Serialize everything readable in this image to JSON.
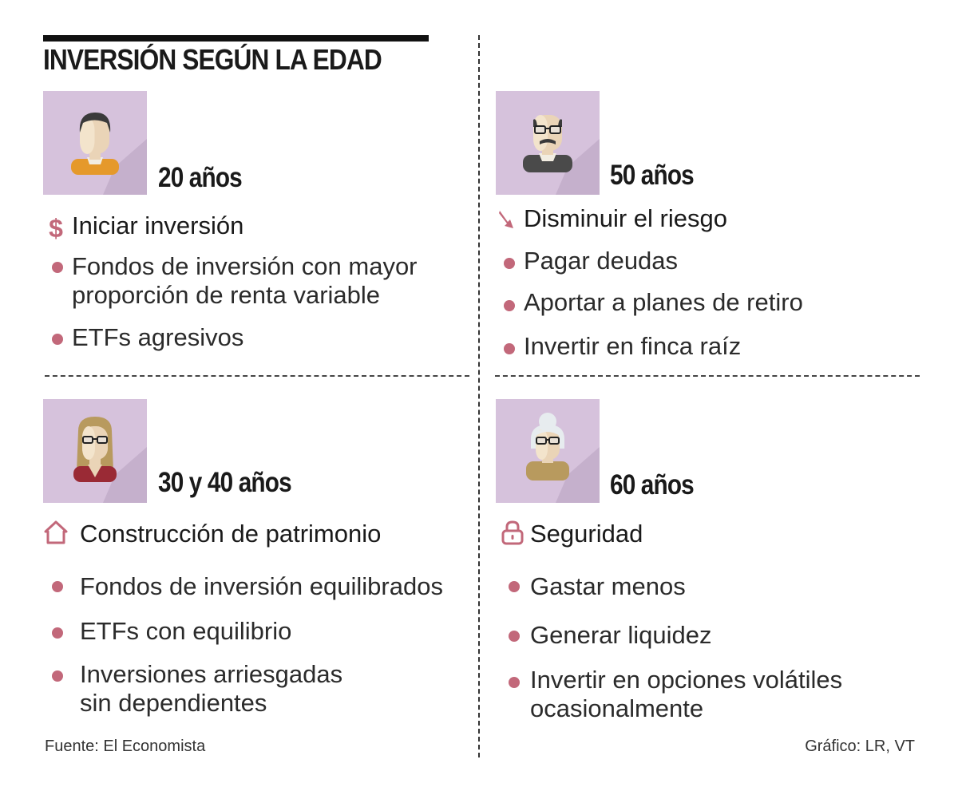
{
  "title": "INVERSIÓN SEGÚN LA EDAD",
  "colors": {
    "accent": "#c2687a",
    "tile": "#d6c2dc",
    "tile_shadow": "#c5b0cc"
  },
  "quadrants": [
    {
      "age": "20 años",
      "category": {
        "label": "Iniciar inversión",
        "icon": "dollar-icon"
      },
      "items": [
        "Fondos de inversión con mayor\nproporción de renta variable",
        "ETFs agresivos"
      ]
    },
    {
      "age": "50 años",
      "category": {
        "label": "Disminuir el riesgo",
        "icon": "arrow-down-right-icon"
      },
      "items": [
        "Pagar deudas",
        "Aportar a planes de retiro",
        "Invertir en finca raíz"
      ]
    },
    {
      "age": "30 y 40 años",
      "category": {
        "label": "Construcción de patrimonio",
        "icon": "house-icon"
      },
      "items": [
        "Fondos de inversión equilibrados",
        "ETFs con equilibrio",
        "Inversiones arriesgadas\nsin dependientes"
      ]
    },
    {
      "age": "60 años",
      "category": {
        "label": "Seguridad",
        "icon": "lock-icon"
      },
      "items": [
        "Gastar menos",
        "Generar liquidez",
        "Invertir en opciones volátiles\nocasionalmente"
      ]
    }
  ],
  "footer": {
    "source": "Fuente: El Economista",
    "credit": "Gráfico: LR, VT"
  }
}
